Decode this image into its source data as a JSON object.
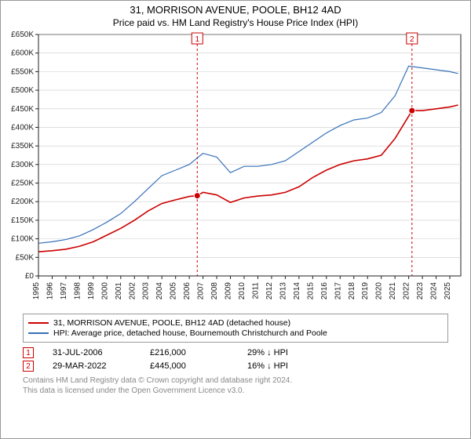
{
  "header": {
    "title": "31, MORRISON AVENUE, POOLE, BH12 4AD",
    "subtitle": "Price paid vs. HM Land Registry's House Price Index (HPI)"
  },
  "chart": {
    "type": "line",
    "plot_bg": "#ffffff",
    "axis_color": "#222222",
    "grid_color": "#cccccc",
    "xlim": [
      1995,
      2025.8
    ],
    "ylim": [
      0,
      650000
    ],
    "ytick_step": 50000,
    "ytick_labels": [
      "£0",
      "£50K",
      "£100K",
      "£150K",
      "£200K",
      "£250K",
      "£300K",
      "£350K",
      "£400K",
      "£450K",
      "£500K",
      "£550K",
      "£600K",
      "£650K"
    ],
    "xticks": [
      1995,
      1996,
      1997,
      1998,
      1999,
      2000,
      2001,
      2002,
      2003,
      2004,
      2005,
      2006,
      2007,
      2008,
      2009,
      2010,
      2011,
      2012,
      2013,
      2014,
      2015,
      2016,
      2017,
      2018,
      2019,
      2020,
      2021,
      2022,
      2023,
      2024,
      2025
    ],
    "series": [
      {
        "key": "property",
        "label": "31, MORRISON AVENUE, POOLE, BH12 4AD (detached house)",
        "color": "#cc0000",
        "line_width": 1.6,
        "data_x": [
          1995,
          1996,
          1997,
          1998,
          1999,
          2000,
          2001,
          2002,
          2003,
          2004,
          2005,
          2006,
          2006.58,
          2007,
          2008,
          2009,
          2010,
          2011,
          2012,
          2013,
          2014,
          2015,
          2016,
          2017,
          2018,
          2019,
          2020,
          2021,
          2022,
          2022.24,
          2023,
          2024,
          2025,
          2025.6
        ],
        "data_y": [
          65000,
          68000,
          72000,
          80000,
          92000,
          110000,
          128000,
          150000,
          175000,
          195000,
          205000,
          214000,
          216000,
          225000,
          218000,
          198000,
          210000,
          215000,
          218000,
          225000,
          240000,
          265000,
          285000,
          300000,
          310000,
          315000,
          325000,
          370000,
          430000,
          445000,
          445000,
          450000,
          455000,
          460000
        ]
      },
      {
        "key": "hpi",
        "label": "HPI: Average price, detached house, Bournemouth Christchurch and Poole",
        "color": "#3670b8",
        "line_width": 1.2,
        "data_x": [
          1995,
          1996,
          1997,
          1998,
          1999,
          2000,
          2001,
          2002,
          2003,
          2004,
          2005,
          2006,
          2007,
          2008,
          2009,
          2010,
          2011,
          2012,
          2013,
          2014,
          2015,
          2016,
          2017,
          2018,
          2019,
          2020,
          2021,
          2022,
          2023,
          2024,
          2025,
          2025.6
        ],
        "data_y": [
          88000,
          92000,
          98000,
          108000,
          125000,
          145000,
          168000,
          200000,
          235000,
          270000,
          285000,
          300000,
          330000,
          320000,
          278000,
          295000,
          295000,
          300000,
          310000,
          335000,
          360000,
          385000,
          405000,
          420000,
          425000,
          440000,
          485000,
          565000,
          560000,
          555000,
          550000,
          545000
        ]
      }
    ],
    "sale_markers": [
      {
        "n": 1,
        "x": 2006.58,
        "y": 216000,
        "color": "#cc0000"
      },
      {
        "n": 2,
        "x": 2022.24,
        "y": 445000,
        "color": "#cc0000"
      }
    ],
    "marker_box_fill": "#ffffff",
    "marker_vline_color": "#cc0000",
    "marker_vline_dash": "3,3"
  },
  "sales": [
    {
      "n": "1",
      "date": "31-JUL-2006",
      "price": "£216,000",
      "delta": "29% ↓ HPI",
      "color": "#cc0000"
    },
    {
      "n": "2",
      "date": "29-MAR-2022",
      "price": "£445,000",
      "delta": "16% ↓ HPI",
      "color": "#cc0000"
    }
  ],
  "footer": {
    "line1": "Contains HM Land Registry data © Crown copyright and database right 2024.",
    "line2": "This data is licensed under the Open Government Licence v3.0."
  }
}
